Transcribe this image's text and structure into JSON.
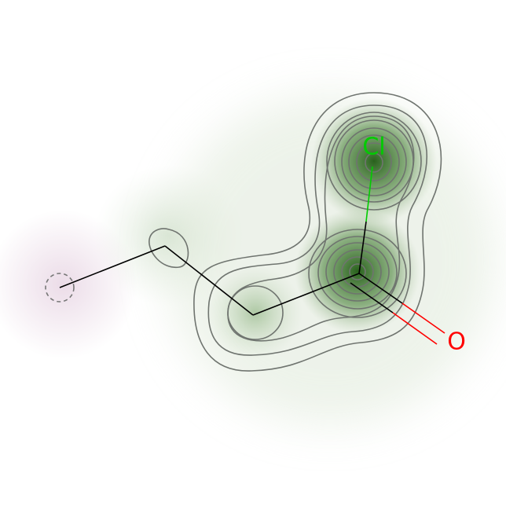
{
  "molecule": {
    "atoms": [
      {
        "id": "a0",
        "element": "C",
        "label": "",
        "kind": "attachment-point"
      },
      {
        "id": "a1",
        "element": "C",
        "label": ""
      },
      {
        "id": "a2",
        "element": "C",
        "label": ""
      },
      {
        "id": "a3",
        "element": "C",
        "label": ""
      },
      {
        "id": "a4",
        "element": "Cl",
        "label": "Cl",
        "color": "#00cc00"
      },
      {
        "id": "a5",
        "element": "O",
        "label": "O",
        "color": "#ff0000"
      }
    ],
    "bonds": [
      {
        "from": "a0",
        "to": "a1",
        "order": 1
      },
      {
        "from": "a1",
        "to": "a2",
        "order": 1
      },
      {
        "from": "a2",
        "to": "a3",
        "order": 1
      },
      {
        "from": "a3",
        "to": "a4",
        "order": 1
      },
      {
        "from": "a3",
        "to": "a5",
        "order": 2
      }
    ]
  },
  "colors": {
    "bond": "#000000",
    "positive_map": "#2f6b1f",
    "negative_map": "#b07aa5",
    "contour": "#6f746f",
    "attachment_ring": "#777777"
  }
}
